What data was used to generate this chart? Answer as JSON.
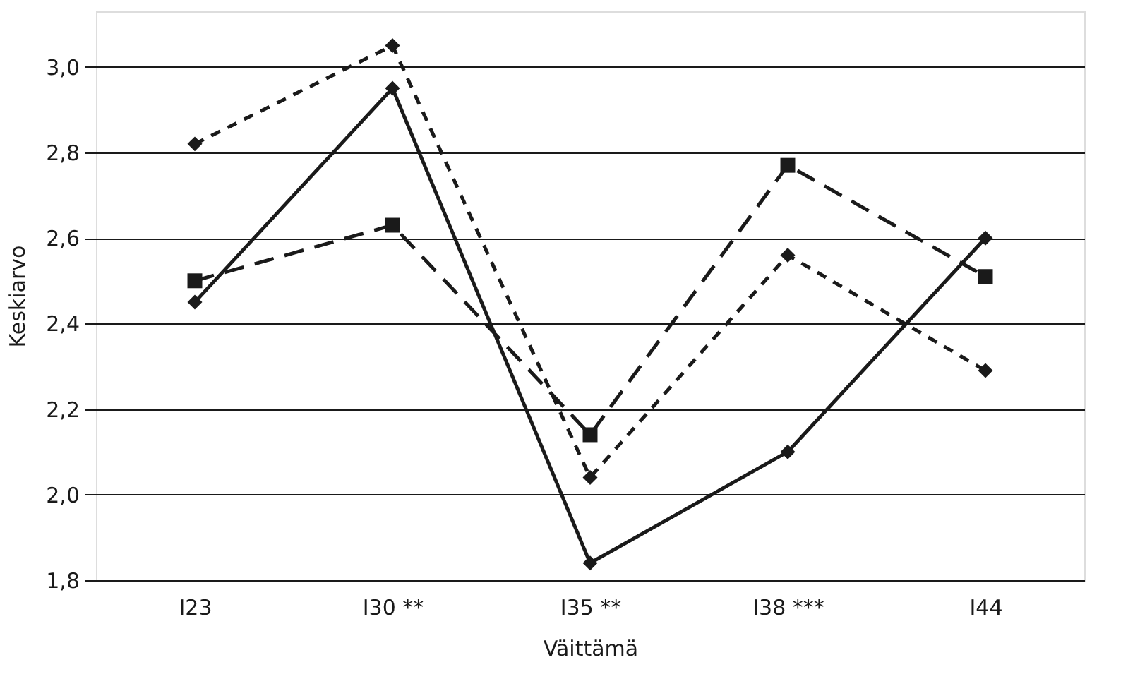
{
  "chart_data": {
    "type": "line",
    "xlabel": "Väittämä",
    "ylabel": "Keskiarvo",
    "categories": [
      "I23",
      "I30 **",
      "I35 **",
      "I38 ***",
      "I44"
    ],
    "ylim": [
      1.8,
      3.13
    ],
    "yticks": [
      {
        "value": 1.8,
        "label": "1,8"
      },
      {
        "value": 2.0,
        "label": "2,0"
      },
      {
        "value": 2.2,
        "label": "2,2"
      },
      {
        "value": 2.4,
        "label": "2,4"
      },
      {
        "value": 2.6,
        "label": "2,6"
      },
      {
        "value": 2.8,
        "label": "2,8"
      },
      {
        "value": 3.0,
        "label": "3,0"
      }
    ],
    "grid": "y",
    "series": [
      {
        "color": "#1a1a1a",
        "values": [
          2.45,
          2.95,
          1.84,
          2.1,
          2.6
        ],
        "line_style": "solid",
        "marker": "diamond"
      },
      {
        "color": "#1a1a1a",
        "values": [
          2.82,
          3.05,
          2.04,
          2.56,
          2.29
        ],
        "line_style": "dotted",
        "marker": "diamond"
      },
      {
        "color": "#1a1a1a",
        "values": [
          2.5,
          2.63,
          2.14,
          2.77,
          2.51
        ],
        "line_style": "dashed",
        "marker": "square"
      }
    ]
  }
}
